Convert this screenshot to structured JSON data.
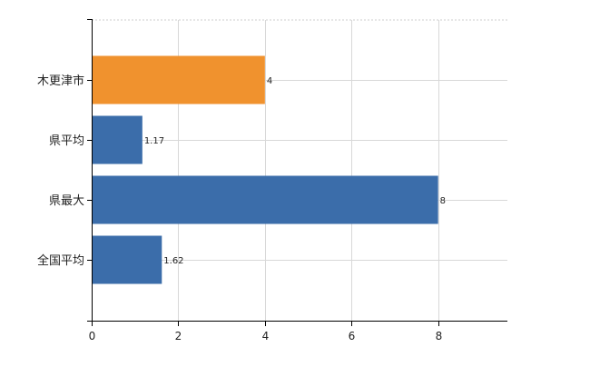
{
  "chart_data": {
    "type": "bar",
    "orientation": "horizontal",
    "categories": [
      "木更津市",
      "県平均",
      "県最大",
      "全国平均"
    ],
    "values": [
      4,
      1.17,
      8,
      1.62
    ],
    "data_labels": [
      "4",
      "1.17",
      "8",
      "1.62"
    ],
    "bar_colors": [
      "#f0922e",
      "#3b6daa",
      "#3b6daa",
      "#3b6daa"
    ],
    "xlim": [
      0,
      9.6
    ],
    "xticks": [
      0,
      2,
      4,
      6,
      8
    ],
    "xtick_labels": [
      "0",
      "2",
      "4",
      "6",
      "8"
    ],
    "grid": true,
    "legend": "none"
  }
}
